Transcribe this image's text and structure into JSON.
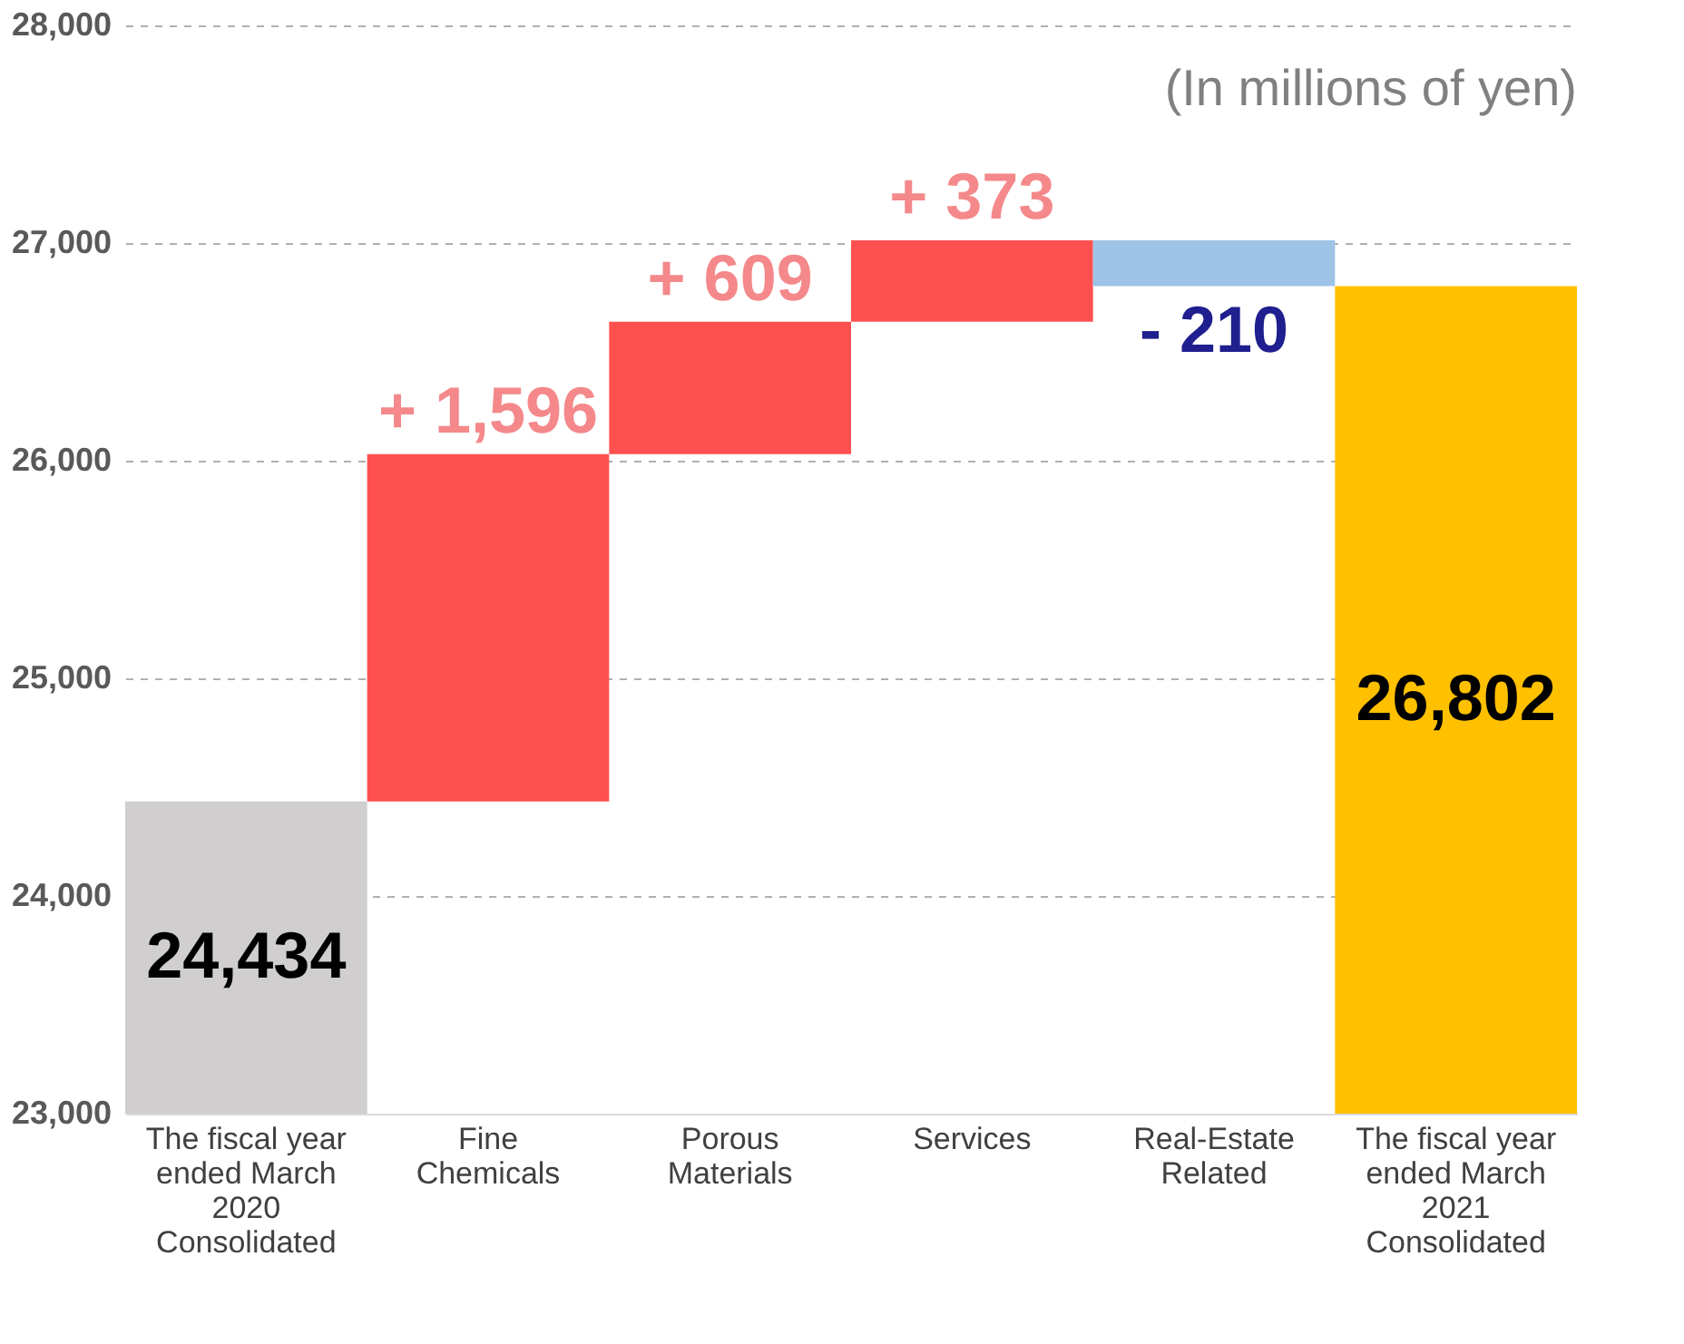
{
  "chart_data": {
    "type": "bar",
    "categories": [
      "The fiscal year\nended March\n2020\nConsolidated",
      "Fine\nChemicals",
      "Porous\nMaterials",
      "Services",
      "Real-Estate\nRelated",
      "The fiscal year\nended March\n2021\nConsolidated"
    ],
    "values": [
      24434,
      1596,
      609,
      373,
      -210,
      26802
    ],
    "base": [
      0,
      24434,
      26030,
      26639,
      27012,
      0
    ],
    "colors": [
      "#d0cece",
      "#ff5050",
      "#ff5050",
      "#ff5050",
      "#9dc3e6",
      "#ffc000"
    ],
    "value_labels": [
      "24,434",
      "+ 1,596",
      "+ 609",
      "+ 373",
      "- 210",
      "26,802"
    ],
    "ylim": [
      23000,
      28000
    ],
    "yticks": [
      {
        "value": 23000,
        "label": "23,000"
      },
      {
        "value": 24000,
        "label": "24,000"
      },
      {
        "value": 25000,
        "label": "25,000"
      },
      {
        "value": 26000,
        "label": "26,000"
      },
      {
        "value": 27000,
        "label": "27,000"
      },
      {
        "value": 28000,
        "label": "28,000"
      }
    ],
    "grid": "y",
    "annotations": [
      "(In millions of yen)"
    ]
  }
}
